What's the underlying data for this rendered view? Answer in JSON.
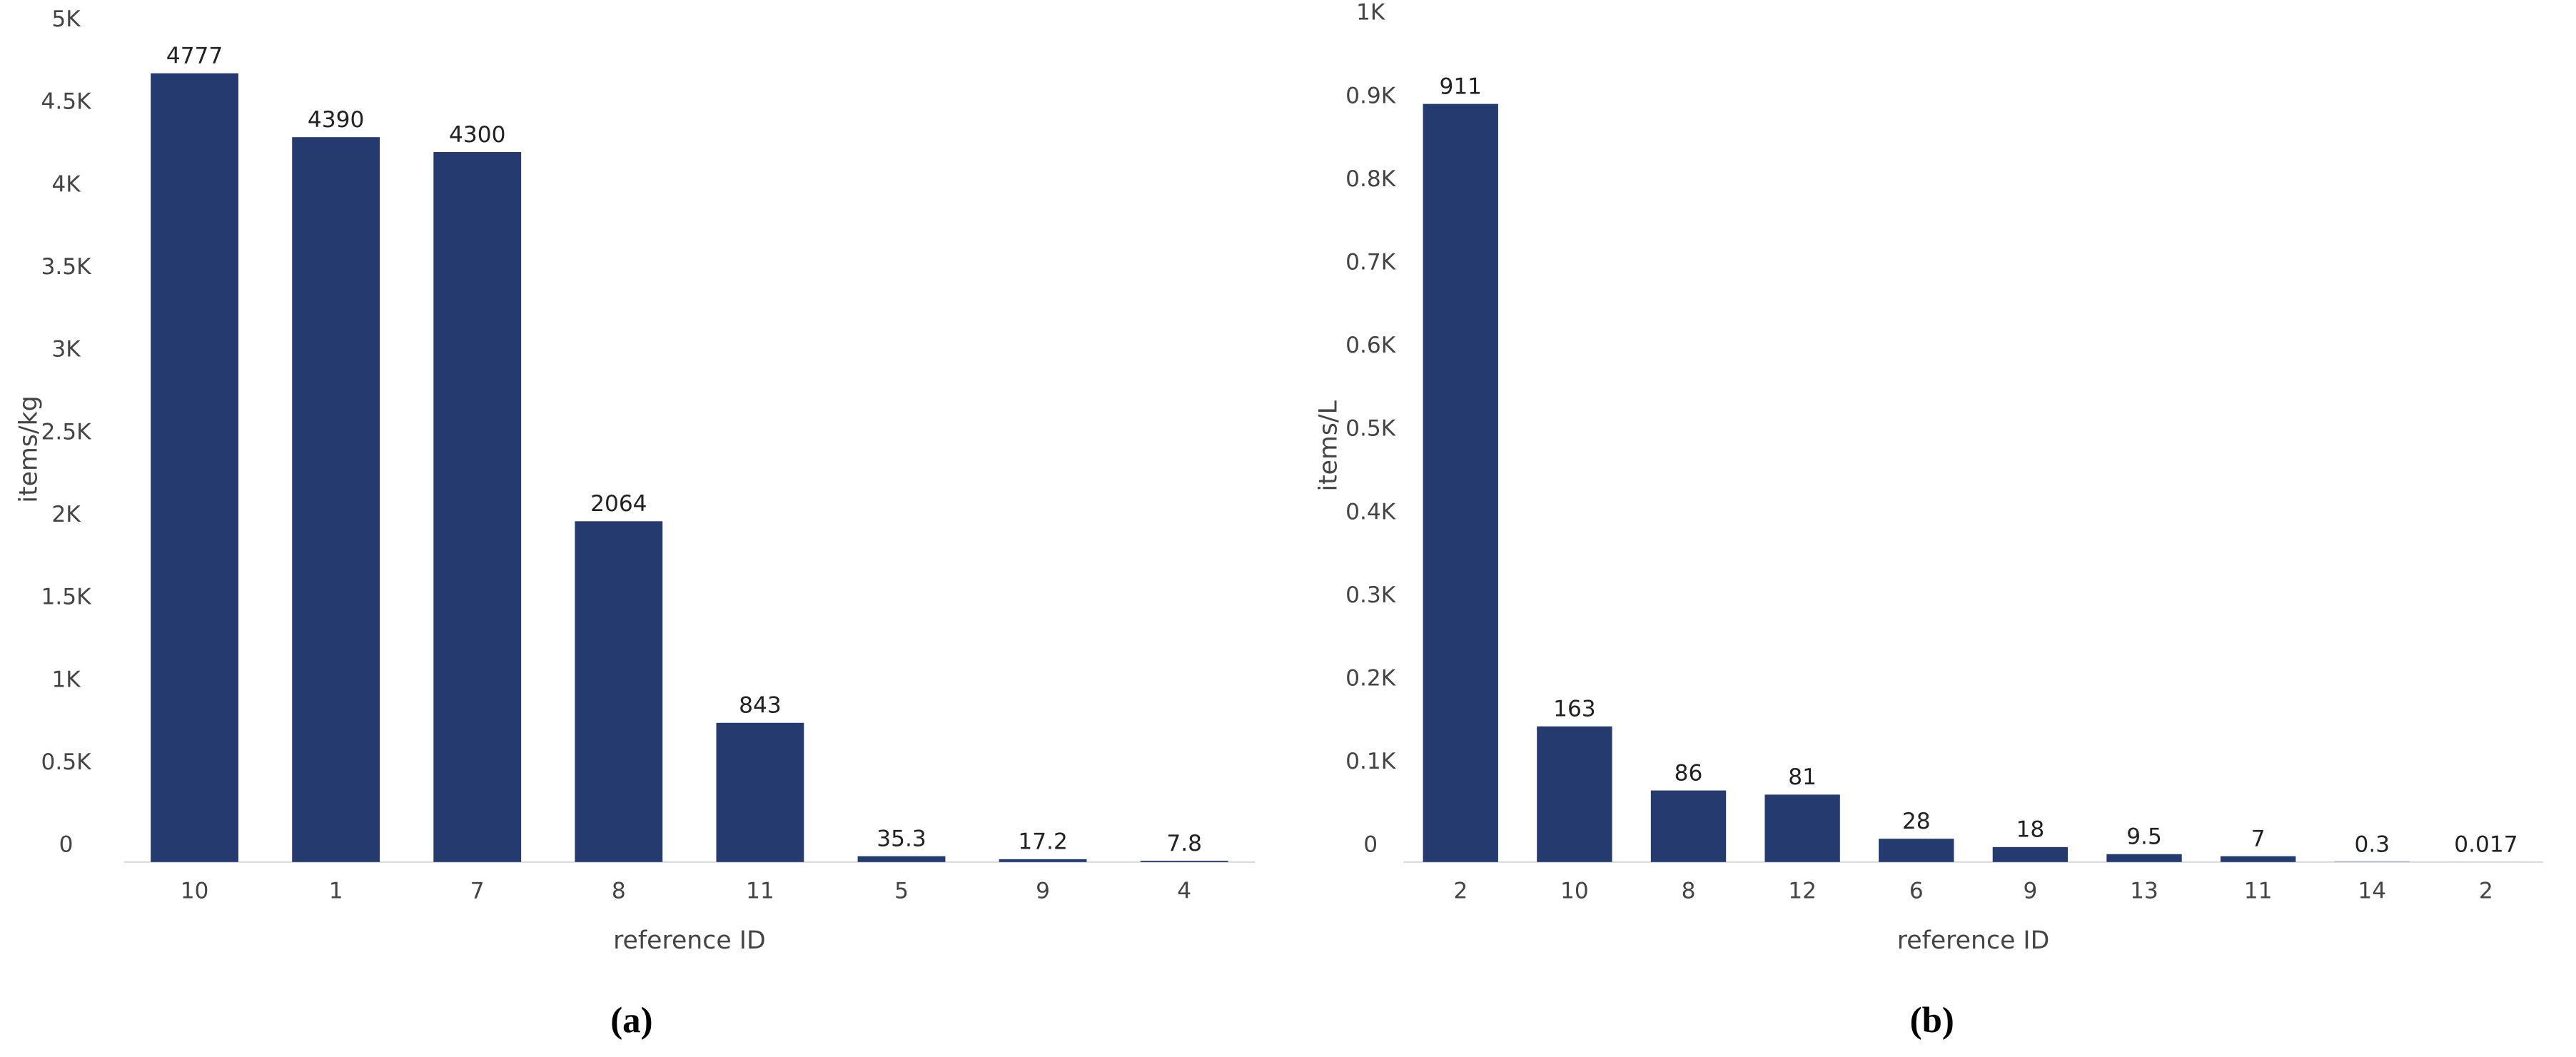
{
  "chart_data": [
    {
      "type": "bar",
      "caption": "(a)",
      "x_label": "reference ID",
      "y_label": "items/kg",
      "categories": [
        "10",
        "1",
        "7",
        "8",
        "11",
        "5",
        "9",
        "4"
      ],
      "values": [
        4777,
        4390,
        4300,
        2064,
        843,
        35.3,
        17.2,
        7.8
      ],
      "color": "#253a6e",
      "ylim": [
        0,
        5000
      ],
      "yticks": [
        0,
        {
          "value": 500,
          "label": "0.5K"
        },
        {
          "value": 1000,
          "label": "1K"
        },
        {
          "value": 1500,
          "label": "1.5K"
        },
        {
          "value": 2000,
          "label": "2K"
        },
        {
          "value": 2500,
          "label": "2.5K"
        },
        {
          "value": 3000,
          "label": "3K"
        },
        {
          "value": 3500,
          "label": "3.5K"
        },
        {
          "value": 4000,
          "label": "4K"
        },
        {
          "value": 4500,
          "label": "4.5K"
        },
        {
          "value": 5000,
          "label": "5K"
        }
      ],
      "grid": false
    },
    {
      "type": "bar",
      "caption": "(b)",
      "x_label": "reference ID",
      "y_label": "items/L",
      "categories": [
        "2",
        "10",
        "8",
        "12",
        "6",
        "9",
        "13",
        "11",
        "14",
        "2"
      ],
      "values": [
        911,
        163,
        86,
        81,
        28,
        18,
        9.5,
        7,
        0.3,
        0.017
      ],
      "color": "#253a6e",
      "ylim": [
        0,
        1000
      ],
      "yticks": [
        0,
        {
          "value": 100,
          "label": "0.1K"
        },
        {
          "value": 200,
          "label": "0.2K"
        },
        {
          "value": 300,
          "label": "0.3K"
        },
        {
          "value": 400,
          "label": "0.4K"
        },
        {
          "value": 500,
          "label": "0.5K"
        },
        {
          "value": 600,
          "label": "0.6K"
        },
        {
          "value": 700,
          "label": "0.7K"
        },
        {
          "value": 800,
          "label": "0.8K"
        },
        {
          "value": 900,
          "label": "0.9K"
        },
        {
          "value": 1000,
          "label": "1K"
        }
      ],
      "grid": false
    }
  ]
}
